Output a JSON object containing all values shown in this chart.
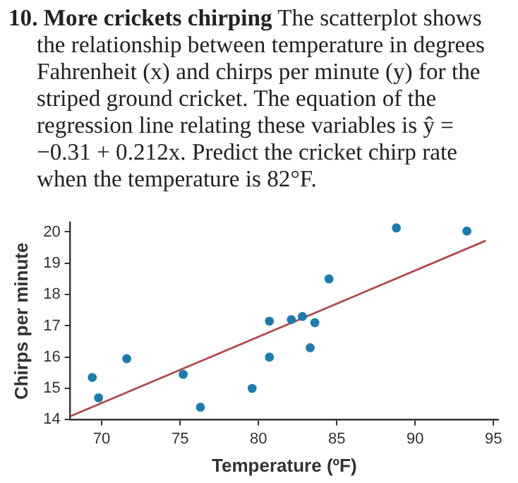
{
  "chart_data": {
    "type": "scatter",
    "title": "10. More crickets chirping",
    "subtitle": "The scatterplot shows the relationship between temperature in degrees Fahrenheit (x) and chirps per minute (y) for the striped ground cricket. The equation of the regression line relating these variables is ŷ = −0.31 + 0.212x. Predict the cricket chirp rate when the temperature is 82°F.",
    "xlabel": "Temperature (ºF)",
    "ylabel": "Chirps per minute",
    "marker": "circle",
    "grid": false,
    "legend": false,
    "xlim": [
      68,
      95.3
    ],
    "xticks": [
      70,
      75,
      80,
      85,
      90,
      95
    ],
    "ylim": [
      14,
      20.3
    ],
    "yticks": [
      14,
      15,
      16,
      17,
      18,
      19,
      20
    ],
    "series": [
      {
        "color": "#1f7bab",
        "x": [
          69.4,
          69.8,
          71.6,
          75.2,
          76.3,
          79.6,
          80.7,
          80.7,
          82.1,
          82.8,
          83.6,
          83.3,
          84.5,
          88.8,
          93.3
        ],
        "values": [
          15.35,
          14.7,
          15.95,
          15.45,
          14.4,
          15.0,
          17.15,
          16.0,
          17.2,
          17.3,
          17.1,
          16.3,
          18.5,
          20.13,
          20.03
        ]
      },
      {
        "type": "line",
        "marker": "none",
        "color": "#b04a50",
        "x": [
          68,
          94.5
        ],
        "values": [
          14.11,
          19.72
        ]
      }
    ]
  }
}
